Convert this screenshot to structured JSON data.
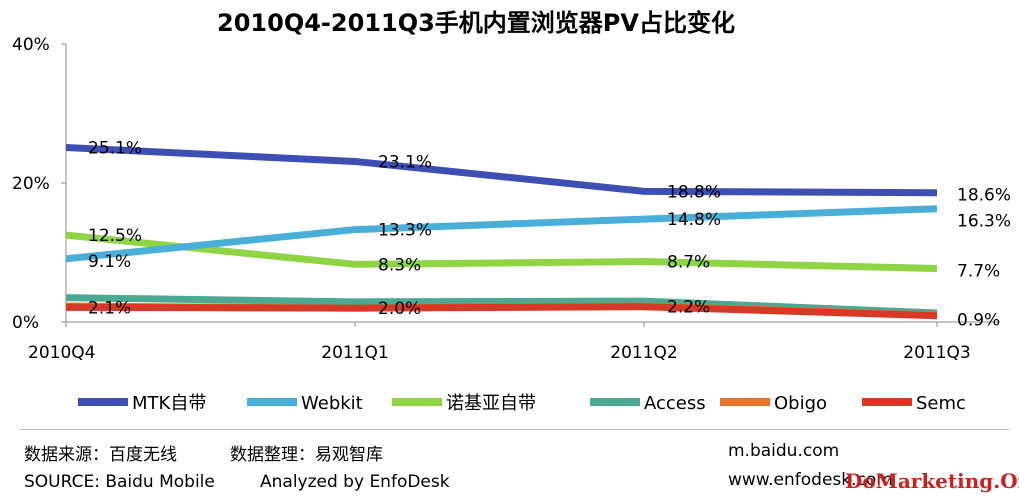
{
  "chart_data": {
    "type": "line",
    "title": "2010Q4-2011Q3手机内置浏览器PV占比变化",
    "categories": [
      "2010Q4",
      "2011Q1",
      "2011Q2",
      "2011Q3"
    ],
    "ylim": [
      0,
      40
    ],
    "yticks": [
      "0%",
      "20%",
      "40%"
    ],
    "ytick_values": [
      0,
      20,
      40
    ],
    "grid": false,
    "legend": "bottom",
    "series": [
      {
        "name": "MTK自带",
        "color": "#3d4fb3",
        "values": [
          25.1,
          23.1,
          18.8,
          18.6
        ],
        "labels": [
          "25.1%",
          "23.1%",
          "18.8%",
          "18.6%"
        ]
      },
      {
        "name": "Webkit",
        "color": "#4aafd8",
        "values": [
          9.1,
          13.3,
          14.8,
          16.3
        ],
        "labels": [
          "9.1%",
          "13.3%",
          "14.8%",
          "16.3%"
        ]
      },
      {
        "name": "诺基亚自带",
        "color": "#8fd445",
        "values": [
          12.5,
          8.3,
          8.7,
          7.7
        ],
        "labels": [
          "12.5%",
          "8.3%",
          "8.7%",
          "7.7%"
        ]
      },
      {
        "name": "Access",
        "color": "#4aa893",
        "values": [
          3.5,
          2.9,
          3.0,
          1.3
        ],
        "labels": [
          "",
          "",
          "",
          ""
        ]
      },
      {
        "name": "Obigo",
        "color": "#e8722a",
        "values": [
          2.3,
          2.0,
          2.3,
          1.0
        ],
        "labels": [
          "",
          "",
          "",
          ""
        ]
      },
      {
        "name": "Semc",
        "color": "#d63a26",
        "values": [
          2.1,
          2.0,
          2.2,
          0.9
        ],
        "labels": [
          "2.1%",
          "2.0%",
          "2.2%",
          "0.9%"
        ]
      }
    ]
  },
  "footer": {
    "source_cn": "数据来源：百度无线",
    "analysis_cn": "数据整理：易观智库",
    "source_en": "SOURCE: Baidu Mobile",
    "analysis_en": "Analyzed by EnfoDesk",
    "url1": "m.baidu.com",
    "url2": "www.enfodesk.com",
    "watermark": "DoMarketing.Org"
  }
}
